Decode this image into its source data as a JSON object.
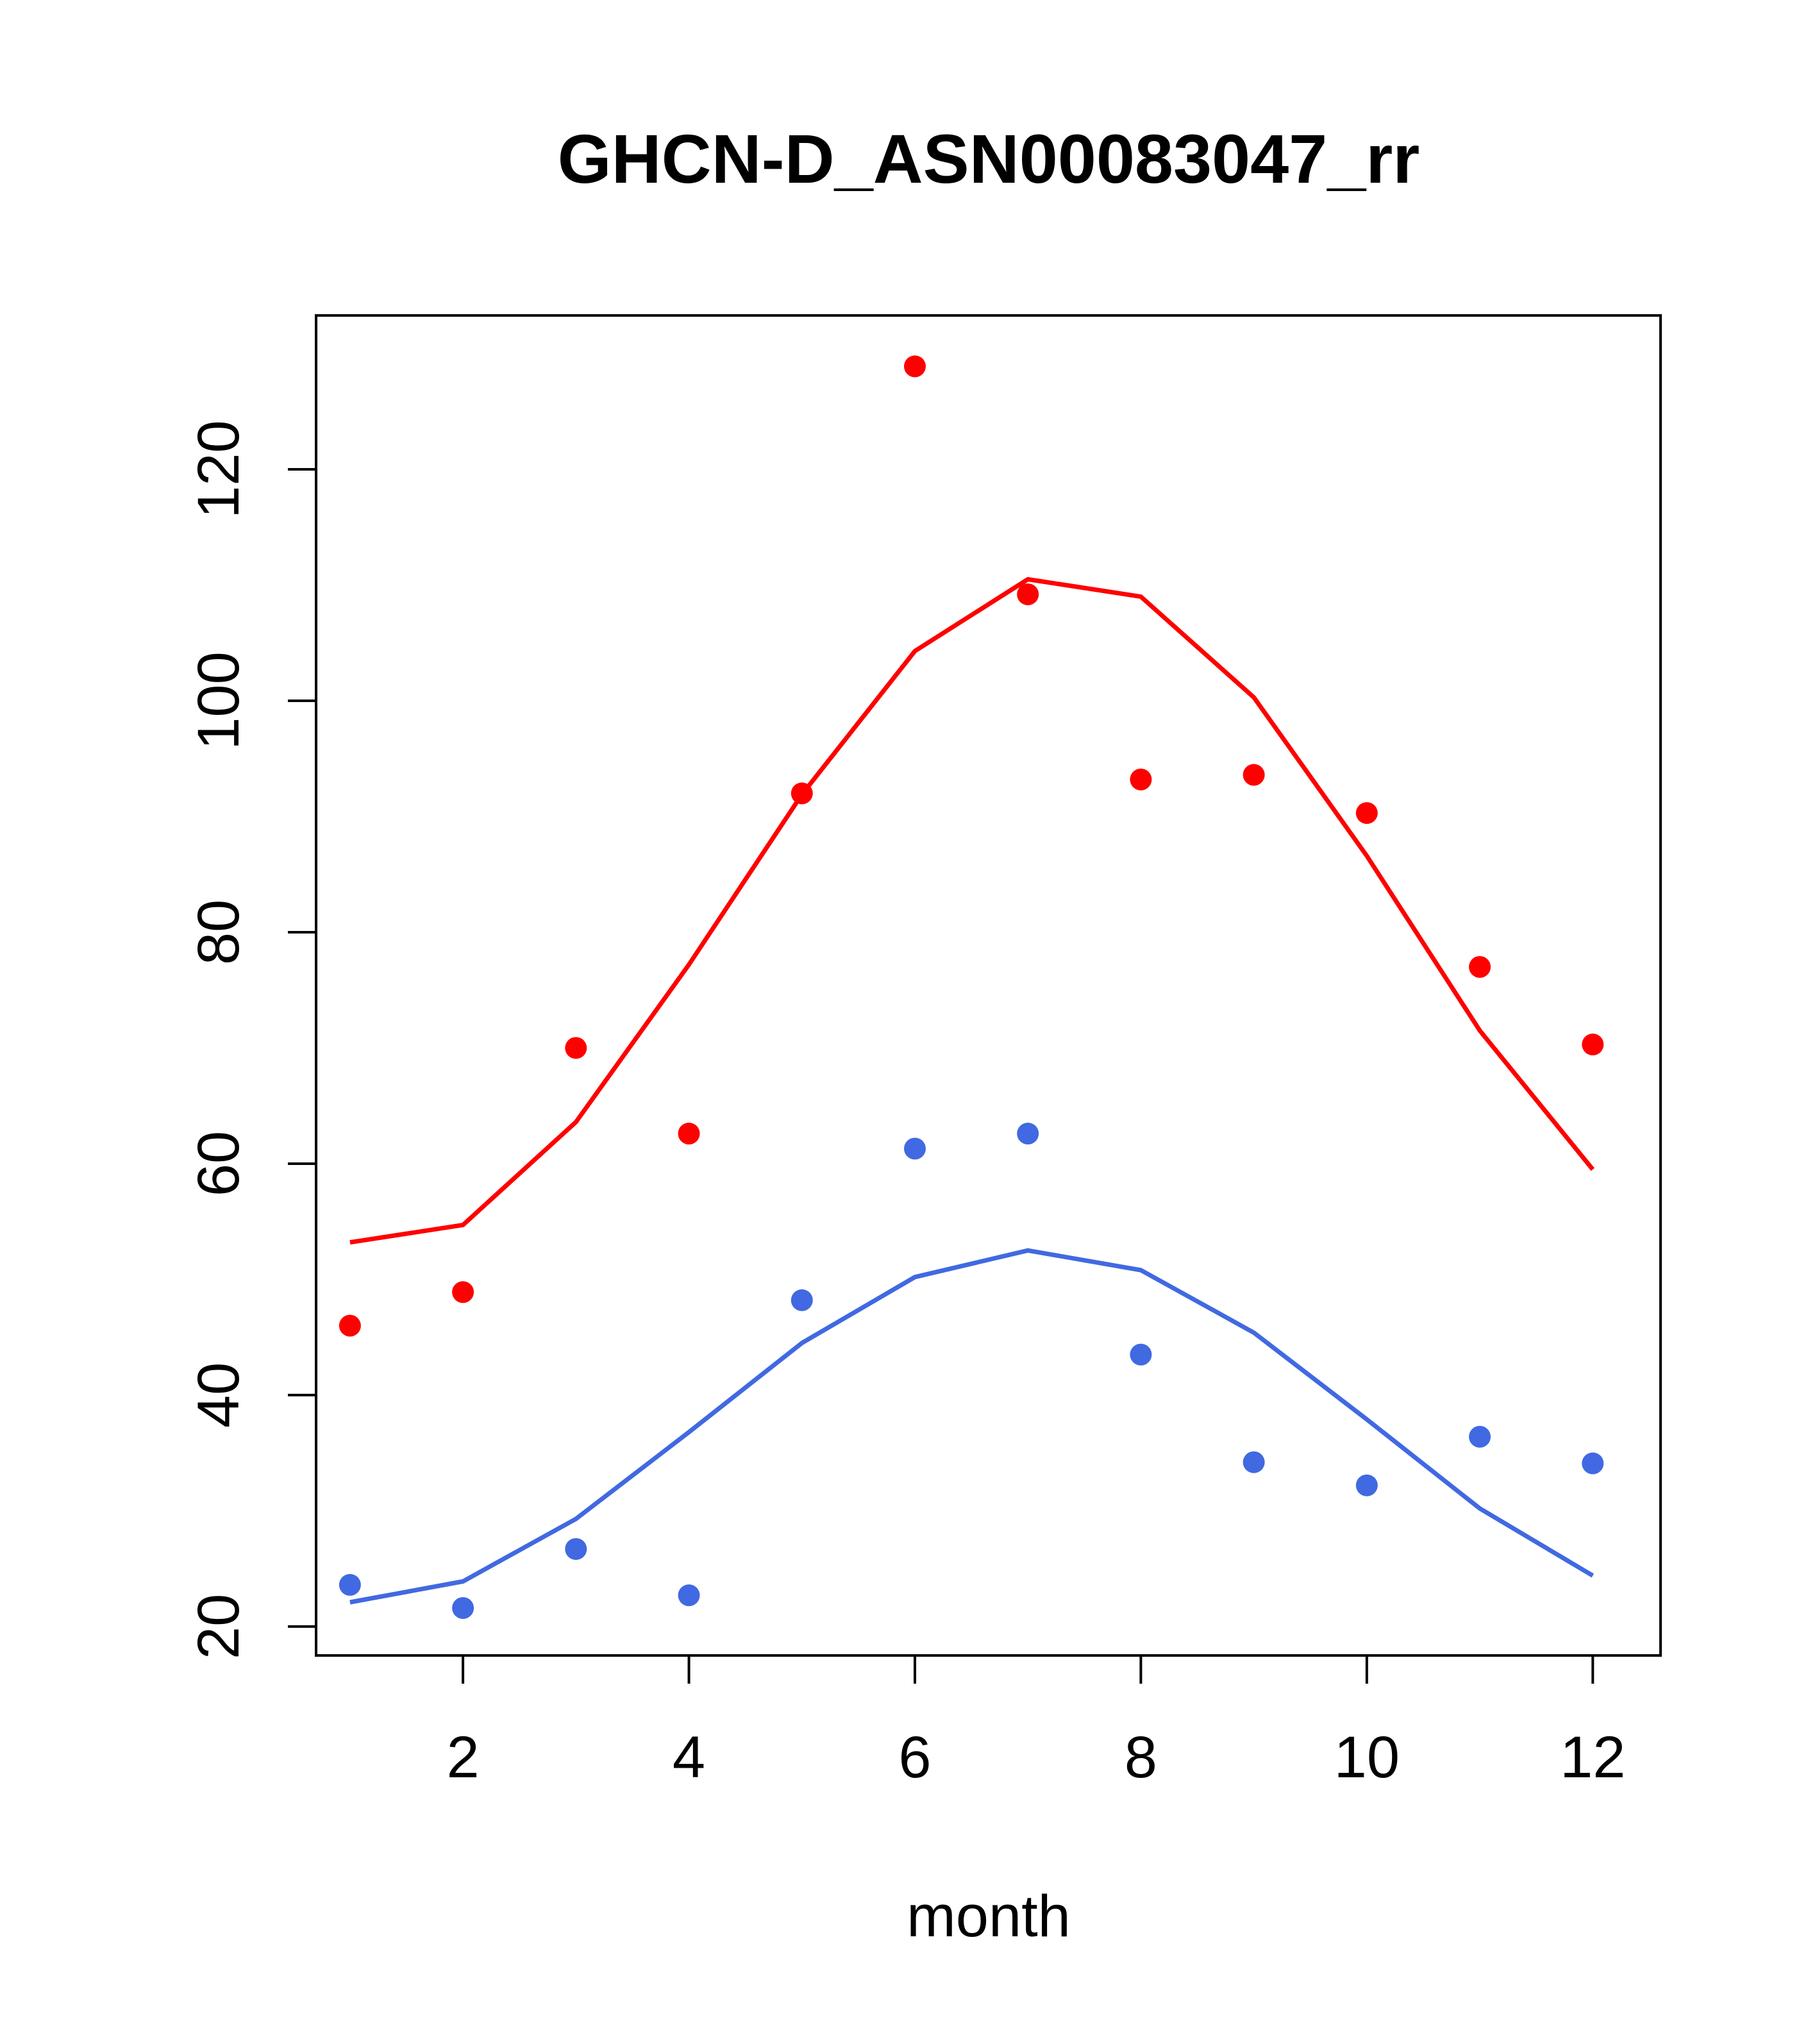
{
  "chart_data": {
    "type": "scatter",
    "title": "GHCN-D_ASN00083047_rr",
    "xlabel": "month",
    "ylabel": "",
    "xlim": [
      0.7,
      12.6
    ],
    "ylim": [
      17.5,
      133.3
    ],
    "x_ticks": [
      2,
      4,
      6,
      8,
      10,
      12
    ],
    "y_ticks": [
      20,
      40,
      60,
      80,
      100,
      120
    ],
    "grid": false,
    "legend": "none",
    "x": [
      1,
      2,
      3,
      4,
      5,
      6,
      7,
      8,
      9,
      10,
      11,
      12
    ],
    "series": [
      {
        "name": "red points",
        "kind": "points",
        "color": "#ff0000",
        "values": [
          46.0,
          48.9,
          70.0,
          62.6,
          92.0,
          128.9,
          109.2,
          93.2,
          93.6,
          90.3,
          77.0,
          70.3
        ]
      },
      {
        "name": "red curve",
        "kind": "line",
        "color": "#ff0000",
        "values": [
          53.2,
          54.7,
          63.6,
          77.2,
          91.9,
          104.3,
          110.5,
          109.0,
          100.3,
          86.6,
          71.5,
          59.5
        ]
      },
      {
        "name": "blue points",
        "kind": "points",
        "color": "#4169e1",
        "values": [
          23.6,
          21.6,
          26.7,
          22.7,
          48.2,
          61.3,
          62.6,
          43.5,
          34.2,
          32.2,
          36.4,
          34.1
        ]
      },
      {
        "name": "blue curve",
        "kind": "line",
        "color": "#4169e1",
        "values": [
          22.1,
          23.9,
          29.3,
          36.8,
          44.5,
          50.2,
          52.5,
          50.8,
          45.4,
          37.9,
          30.2,
          24.4
        ]
      }
    ]
  }
}
